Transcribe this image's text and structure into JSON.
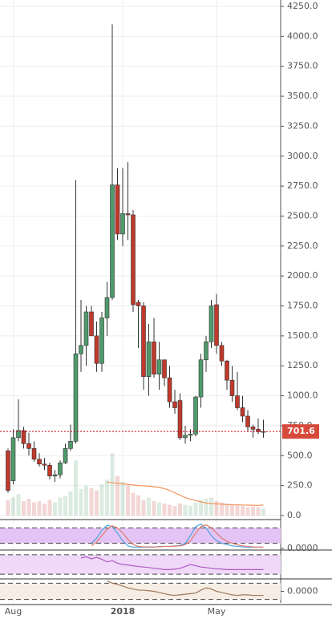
{
  "chart_data": {
    "type": "candlestick",
    "categories": [
      null,
      "Aug",
      null,
      null,
      null,
      null,
      null,
      null,
      null,
      null,
      null,
      null,
      null,
      null,
      null,
      null,
      null,
      null,
      null,
      null,
      null,
      null,
      "2018",
      null,
      null,
      null,
      null,
      null,
      null,
      null,
      null,
      null,
      null,
      null,
      null,
      null,
      null,
      null,
      null,
      null,
      "May",
      null,
      null,
      null,
      null,
      null,
      null,
      null,
      null,
      null
    ],
    "open": [
      540,
      290,
      650,
      710,
      600,
      560,
      470,
      430,
      420,
      330,
      340,
      440,
      560,
      620,
      1350,
      1420,
      1700,
      1500,
      1270,
      1650,
      1820,
      2760,
      2350,
      2520,
      2510,
      1780,
      1750,
      1160,
      1450,
      1180,
      1300,
      1150,
      950,
      960,
      650,
      670,
      680,
      990,
      1300,
      1450,
      1760,
      1420,
      1290,
      1130,
      1000,
      900,
      830,
      740,
      720,
      700
    ],
    "high": [
      560,
      720,
      970,
      740,
      690,
      620,
      520,
      480,
      440,
      380,
      460,
      600,
      760,
      2800,
      1800,
      1750,
      1750,
      1620,
      1700,
      1950,
      4100,
      2900,
      2900,
      2950,
      2550,
      1800,
      1780,
      1600,
      1650,
      1450,
      1300,
      1250,
      1050,
      1020,
      750,
      720,
      1000,
      1350,
      1500,
      1800,
      1850,
      1450,
      1300,
      1250,
      1200,
      1000,
      880,
      760,
      810,
      800
    ],
    "low": [
      190,
      260,
      620,
      560,
      500,
      450,
      410,
      380,
      300,
      280,
      310,
      430,
      540,
      600,
      1200,
      1250,
      1500,
      1200,
      1200,
      1500,
      1800,
      2300,
      2250,
      2300,
      1700,
      1400,
      1050,
      1000,
      1150,
      1050,
      1080,
      900,
      850,
      630,
      600,
      620,
      660,
      900,
      1200,
      1400,
      1350,
      1250,
      1050,
      950,
      880,
      780,
      700,
      650,
      680,
      650
    ],
    "close": [
      210,
      650,
      710,
      600,
      560,
      470,
      430,
      420,
      330,
      340,
      440,
      560,
      620,
      1350,
      1420,
      1700,
      1500,
      1270,
      1650,
      1820,
      2760,
      2350,
      2520,
      2510,
      1760,
      1750,
      1160,
      1450,
      1180,
      1300,
      1150,
      950,
      900,
      650,
      670,
      680,
      990,
      1300,
      1450,
      1750,
      1420,
      1290,
      1130,
      1000,
      900,
      830,
      740,
      720,
      700,
      701.6
    ],
    "up_color": "#4f9a6b",
    "down_color": "#c0392b",
    "volume": [
      130,
      150,
      180,
      120,
      140,
      110,
      120,
      100,
      130,
      110,
      150,
      160,
      200,
      460,
      220,
      250,
      230,
      210,
      260,
      300,
      520,
      330,
      280,
      250,
      190,
      170,
      130,
      150,
      120,
      110,
      100,
      90,
      80,
      100,
      90,
      80,
      110,
      130,
      140,
      150,
      120,
      110,
      100,
      90,
      85,
      80,
      70,
      75,
      70,
      60
    ],
    "moving_average": {
      "color": "#f0945a",
      "values": [
        null,
        null,
        null,
        null,
        null,
        null,
        null,
        null,
        null,
        null,
        null,
        null,
        null,
        null,
        null,
        null,
        null,
        null,
        null,
        280,
        275,
        270,
        265,
        260,
        255,
        250,
        248,
        245,
        240,
        235,
        225,
        210,
        190,
        170,
        150,
        135,
        125,
        115,
        105,
        100,
        98,
        95,
        92,
        90,
        90,
        88,
        87,
        86,
        85,
        88
      ]
    },
    "last_price": 701.6,
    "ylim": [
      0,
      4250
    ],
    "yticks": [
      {
        "value": 0,
        "label": "0.0"
      },
      {
        "value": 250,
        "label": "250.0"
      },
      {
        "value": 500,
        "label": "500.0"
      },
      {
        "value": 750,
        "label": "750.0"
      },
      {
        "value": 1000,
        "label": "1000.0"
      },
      {
        "value": 1250,
        "label": "1250.0"
      },
      {
        "value": 1500,
        "label": "1500.0"
      },
      {
        "value": 1750,
        "label": "1750.0"
      },
      {
        "value": 2000,
        "label": "2000.0"
      },
      {
        "value": 2250,
        "label": "2250.0"
      },
      {
        "value": 2500,
        "label": "2500.0"
      },
      {
        "value": 2750,
        "label": "2750.0"
      },
      {
        "value": 3000,
        "label": "3000.0"
      },
      {
        "value": 3250,
        "label": "3250.0"
      },
      {
        "value": 3500,
        "label": "3500.0"
      },
      {
        "value": 3750,
        "label": "3750.0"
      },
      {
        "value": 4000,
        "label": "4000.0"
      },
      {
        "value": 4250,
        "label": "4250.0"
      }
    ],
    "grid": true,
    "indicators": [
      {
        "ylim": [
          0,
          100
        ],
        "yticks": [
          {
            "value": 0,
            "label": "0.0000"
          }
        ],
        "bands": [
          20,
          80
        ],
        "band_color": "#e3c4f5",
        "series": [
          {
            "color": "#4aa3df",
            "values": [
              null,
              null,
              null,
              null,
              null,
              null,
              null,
              null,
              null,
              null,
              null,
              null,
              null,
              null,
              null,
              null,
              20,
              40,
              70,
              90,
              85,
              60,
              30,
              10,
              5,
              5,
              5,
              5,
              5,
              8,
              8,
              8,
              10,
              12,
              20,
              50,
              85,
              95,
              80,
              50,
              30,
              20,
              15,
              10,
              8,
              6,
              5,
              5,
              5,
              5
            ]
          },
          {
            "color": "#e07a6a",
            "values": [
              null,
              null,
              null,
              null,
              null,
              null,
              null,
              null,
              null,
              null,
              null,
              null,
              null,
              null,
              null,
              null,
              10,
              25,
              50,
              75,
              88,
              80,
              60,
              35,
              15,
              8,
              6,
              6,
              6,
              6,
              8,
              8,
              9,
              10,
              15,
              30,
              60,
              85,
              92,
              80,
              60,
              40,
              28,
              20,
              14,
              10,
              8,
              6,
              5,
              5
            ]
          }
        ]
      },
      {
        "ylim": [
          0,
          1
        ],
        "bands": [
          0.12,
          0.88
        ],
        "band_color": "#efd8f8",
        "series": [
          {
            "color": "#b05cc4",
            "values": [
              null,
              null,
              null,
              null,
              null,
              null,
              null,
              null,
              null,
              null,
              null,
              null,
              null,
              null,
              0.75,
              0.8,
              0.72,
              0.78,
              0.7,
              0.6,
              0.65,
              0.55,
              0.5,
              0.48,
              0.45,
              0.42,
              0.4,
              0.38,
              0.35,
              0.33,
              0.3,
              0.3,
              0.32,
              0.35,
              0.42,
              0.5,
              0.45,
              0.4,
              0.38,
              0.35,
              0.33,
              0.32,
              0.3,
              0.3,
              0.3,
              0.3,
              0.3,
              0.3,
              0.3,
              0.3
            ]
          }
        ]
      },
      {
        "ylim": [
          -1,
          1
        ],
        "yticks": [
          {
            "value": 0,
            "label": "0.0000"
          }
        ],
        "bands": [
          -0.7,
          0.7
        ],
        "band_color": "#f6ede4",
        "series": [
          {
            "color": "#a0785a",
            "values": [
              null,
              null,
              null,
              null,
              null,
              null,
              null,
              null,
              null,
              null,
              null,
              null,
              null,
              null,
              null,
              null,
              null,
              null,
              null,
              0.9,
              0.7,
              0.6,
              0.45,
              0.3,
              0.2,
              0.1,
              0.1,
              0.05,
              0,
              -0.1,
              -0.2,
              -0.3,
              -0.35,
              -0.3,
              -0.25,
              -0.2,
              -0.15,
              0.1,
              0.3,
              0.2,
              0,
              -0.1,
              -0.2,
              -0.3,
              -0.35,
              -0.3,
              -0.3,
              -0.35,
              -0.35,
              -0.35
            ]
          }
        ]
      }
    ]
  }
}
